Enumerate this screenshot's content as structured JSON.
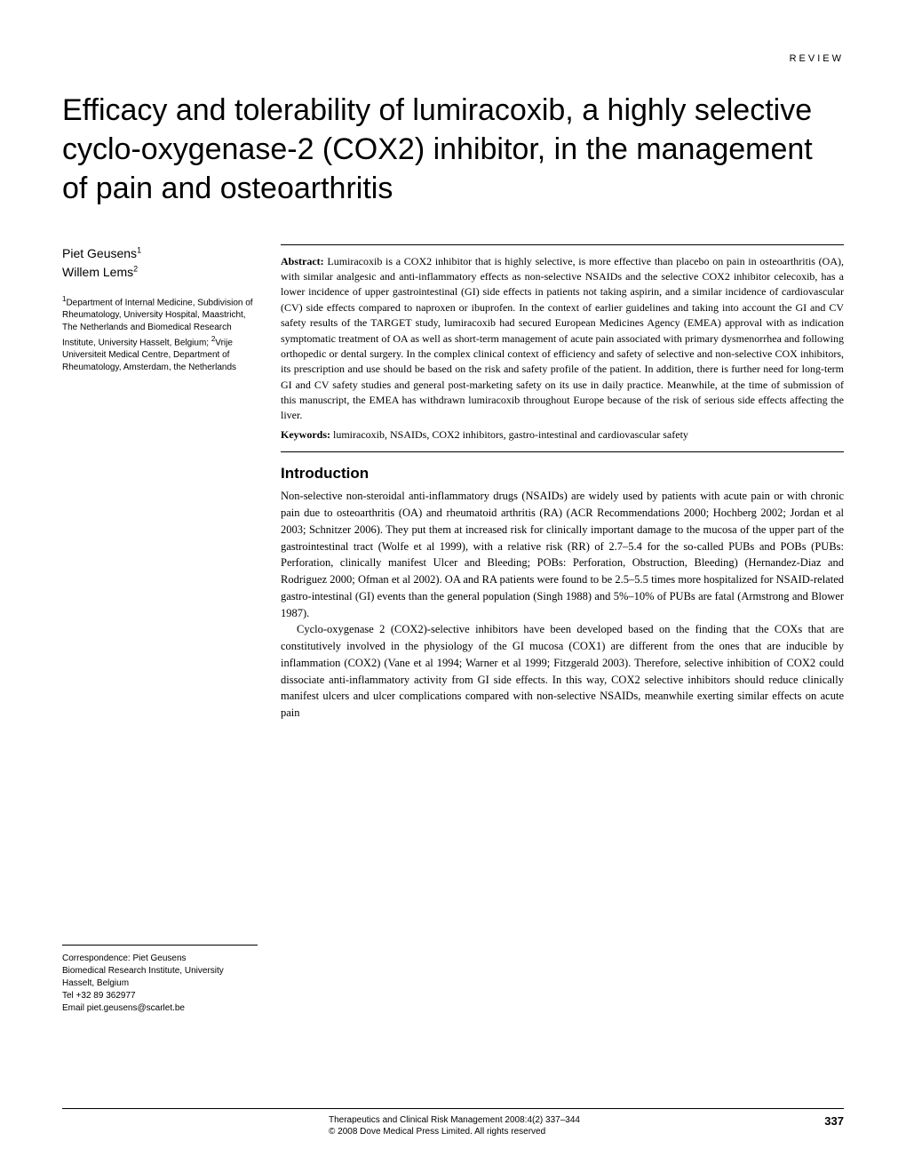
{
  "header": {
    "label": "REVIEW"
  },
  "title": "Efficacy and tolerability of lumiracoxib, a highly selective cyclo-oxygenase-2 (COX2) inhibitor, in the management of pain and osteoarthritis",
  "authors": {
    "a1_name": "Piet Geusens",
    "a1_sup": "1",
    "a2_name": "Willem Lems",
    "a2_sup": "2"
  },
  "affiliations": {
    "sup1": "1",
    "text1": "Department of Internal Medicine, Subdivision of Rheumatology, University Hospital, Maastricht, The Netherlands and Biomedical Research Institute, University Hasselt, Belgium; ",
    "sup2": "2",
    "text2": "Vrije Universiteit Medical Centre, Department of Rheumatology, Amsterdam, the Netherlands"
  },
  "correspondence": {
    "line1": "Correspondence: Piet Geusens",
    "line2": "Biomedical Research Institute, University Hasselt, Belgium",
    "line3": "Tel +32 89 362977",
    "line4": "Email piet.geusens@scarlet.be"
  },
  "abstract": {
    "label": "Abstract:",
    "text": " Lumiracoxib is a COX2 inhibitor that is highly selective, is more effective than placebo on pain in osteoarthritis (OA), with similar analgesic and anti-inflammatory effects as non-selective NSAIDs and the selective COX2 inhibitor celecoxib, has a lower incidence of upper gastrointestinal (GI) side effects in patients not taking aspirin, and a similar incidence of cardiovascular (CV) side effects compared to naproxen or ibuprofen. In the context of earlier guidelines and taking into account the GI and CV safety results of the TARGET study, lumiracoxib had secured European Medicines Agency (EMEA) approval with as indication symptomatic treatment of OA as well as short-term management of acute pain associated with primary dysmenorrhea and following orthopedic or dental surgery. In the complex clinical context of efficiency and safety of selective and non-selective COX inhibitors, its prescription and use should be based on the risk and safety profile of the patient. In addition, there is further need for long-term GI and CV safety studies and general post-marketing safety on its use in daily practice. Meanwhile, at the time of submission of this manuscript, the EMEA has withdrawn lumiracoxib throughout Europe because of the risk of serious side effects affecting the liver."
  },
  "keywords": {
    "label": "Keywords:",
    "text": " lumiracoxib, NSAIDs, COX2 inhibitors, gastro-intestinal and cardiovascular safety"
  },
  "introduction": {
    "heading": "Introduction",
    "p1": "Non-selective non-steroidal anti-inflammatory drugs (NSAIDs) are widely used by patients with acute pain or with chronic pain due to osteoarthritis (OA) and rheumatoid arthritis (RA) (ACR Recommendations 2000; Hochberg 2002; Jordan et al 2003; Schnitzer 2006). They put them at increased risk for clinically important damage to the mucosa of the upper part of the gastrointestinal tract (Wolfe et al 1999), with a relative risk (RR) of 2.7–5.4 for the so-called PUBs and POBs (PUBs: Perforation, clinically manifest Ulcer and Bleeding; POBs: Perforation, Obstruction, Bleeding) (Hernandez-Diaz and Rodriguez 2000; Ofman et al 2002). OA and RA patients were found to be 2.5–5.5 times more hospitalized for NSAID-related gastro-intestinal (GI) events than the general population (Singh 1988) and 5%–10% of PUBs are fatal (Armstrong and Blower 1987).",
    "p2": "Cyclo-oxygenase 2 (COX2)-selective inhibitors have been developed based on the finding that the COXs that are constitutively involved in the physiology of the GI mucosa (COX1) are different from the ones that are inducible by inflammation (COX2) (Vane et al 1994; Warner et al 1999; Fitzgerald 2003). Therefore, selective inhibition of COX2 could dissociate anti-inflammatory activity from GI side effects. In this way, COX2 selective inhibitors should reduce clinically manifest ulcers and ulcer complications compared with non-selective NSAIDs, meanwhile exerting similar effects on acute pain"
  },
  "footer": {
    "journal": "Therapeutics and Clinical Risk Management 2008:4(2) 337–344",
    "copyright": "© 2008 Dove Medical Press Limited. All rights reserved",
    "page": "337"
  }
}
